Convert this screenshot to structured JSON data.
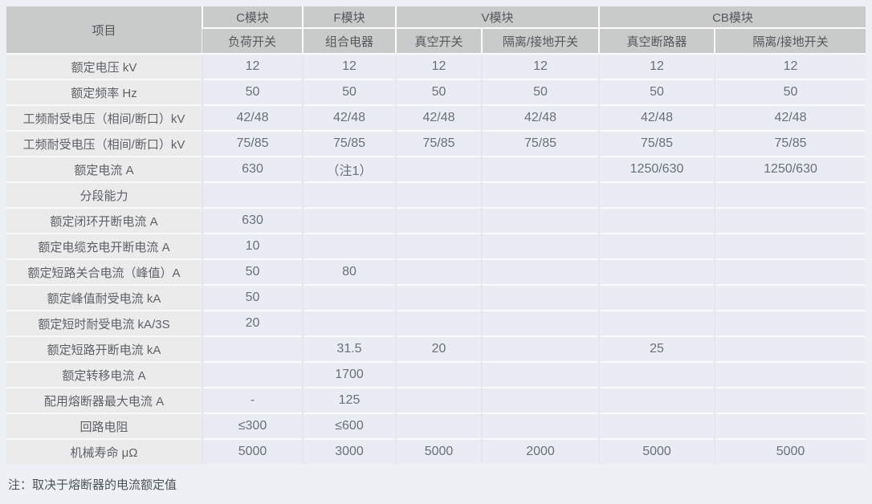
{
  "table": {
    "item_header": "项目",
    "groups": [
      {
        "label": "C模块",
        "sub": [
          "负荷开关"
        ]
      },
      {
        "label": "F模块",
        "sub": [
          "组合电器"
        ]
      },
      {
        "label": "V模块",
        "sub": [
          "真空开关",
          "隔离/接地开关"
        ]
      },
      {
        "label": "CB模块",
        "sub": [
          "真空断路器",
          "隔离/接地开关"
        ]
      }
    ],
    "rows": [
      {
        "label": "额定电压 kV",
        "values": [
          "12",
          "12",
          "12",
          "12",
          "12",
          "12"
        ]
      },
      {
        "label": "额定频率 Hz",
        "values": [
          "50",
          "50",
          "50",
          "50",
          "50",
          "50"
        ]
      },
      {
        "label": "工频耐受电压（相间/断口）kV",
        "values": [
          "42/48",
          "42/48",
          "42/48",
          "42/48",
          "42/48",
          "42/48"
        ]
      },
      {
        "label": "工频耐受电压（相间/断口）kV",
        "values": [
          "75/85",
          "75/85",
          "75/85",
          "75/85",
          "75/85",
          "75/85"
        ]
      },
      {
        "label": "额定电流 A",
        "values": [
          "630",
          "（注1）",
          "",
          "",
          "1250/630",
          "1250/630"
        ]
      },
      {
        "label": "分段能力",
        "values": [
          "",
          "",
          "",
          "",
          "",
          ""
        ]
      },
      {
        "label": "额定闭环开断电流 A",
        "values": [
          "630",
          "",
          "",
          "",
          "",
          ""
        ]
      },
      {
        "label": "额定电缆充电开断电流 A",
        "values": [
          "10",
          "",
          "",
          "",
          "",
          ""
        ]
      },
      {
        "label": "额定短路关合电流（峰值）A",
        "values": [
          "50",
          "80",
          "",
          "",
          "",
          ""
        ]
      },
      {
        "label": "额定峰值耐受电流 kA",
        "values": [
          "50",
          "",
          "",
          "",
          "",
          ""
        ]
      },
      {
        "label": "额定短时耐受电流 kA/3S",
        "values": [
          "20",
          "",
          "",
          "",
          "",
          ""
        ]
      },
      {
        "label": "额定短路开断电流 kA",
        "values": [
          "",
          "31.5",
          "20",
          "",
          "25",
          ""
        ]
      },
      {
        "label": "额定转移电流 A",
        "values": [
          "",
          "1700",
          "",
          "",
          "",
          ""
        ]
      },
      {
        "label": "配用熔断器最大电流 A",
        "values": [
          "-",
          "125",
          "",
          "",
          "",
          ""
        ]
      },
      {
        "label": "回路电阻",
        "values": [
          "≤300",
          "≤600",
          "",
          "",
          "",
          ""
        ]
      },
      {
        "label": "机械寿命 μΩ",
        "values": [
          "5000",
          "3000",
          "5000",
          "2000",
          "5000",
          "5000"
        ]
      }
    ]
  },
  "footnote": "注：取决于熔断器的电流额定值",
  "colors": {
    "page_bg": "#edf0f4",
    "header_bg": "#c9cbca",
    "label_cell_bg": "#ebebeb",
    "value_cell_bg": "#e9edf3",
    "header_text": "#54595c",
    "value_text": "#6a7077"
  }
}
